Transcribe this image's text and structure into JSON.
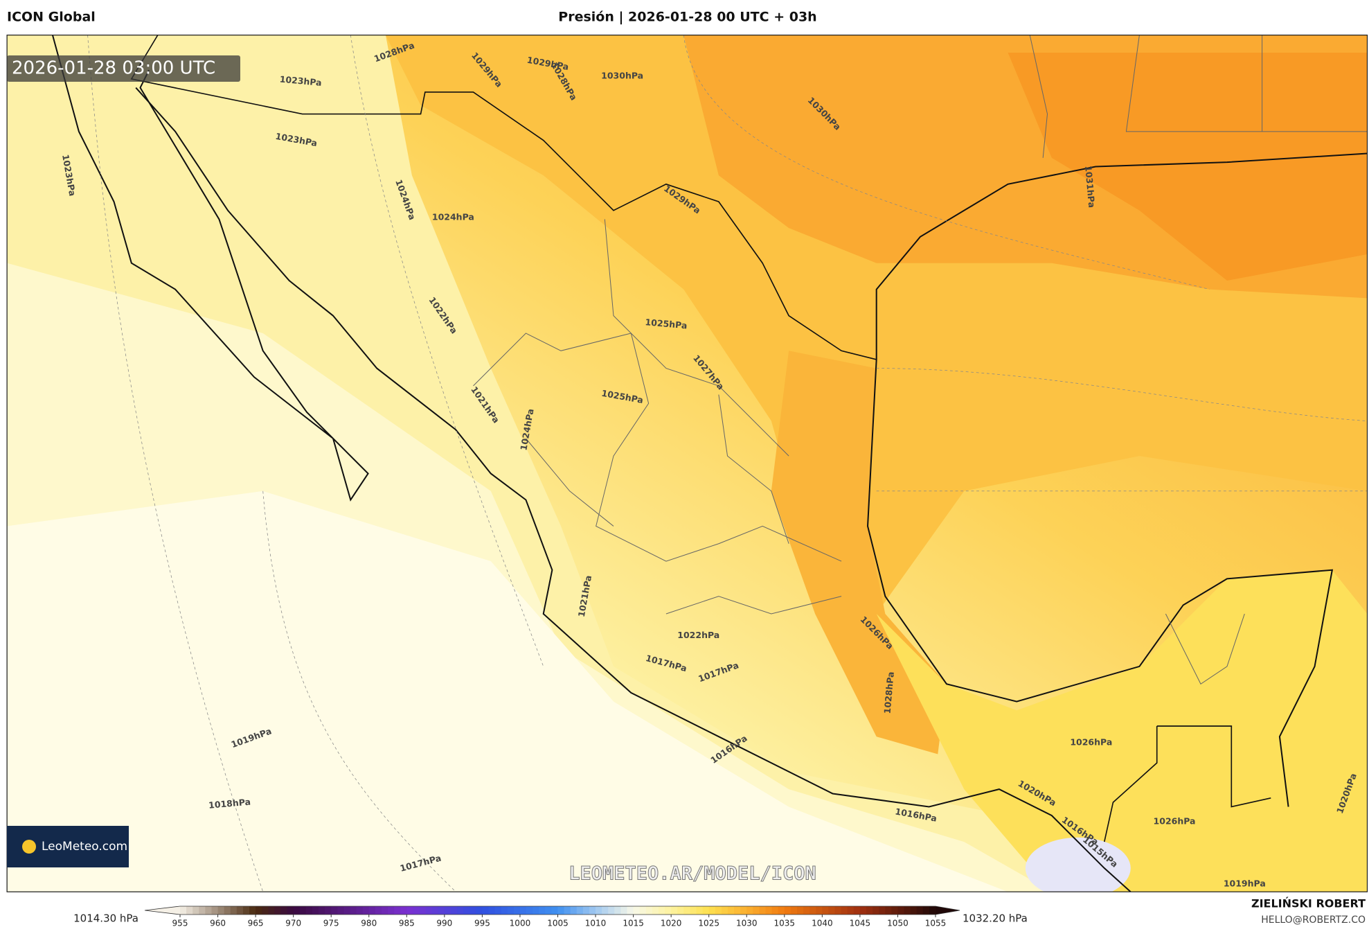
{
  "header": {
    "model": "ICON Global",
    "title": "Presión | 2026-01-28 00 UTC + 03h"
  },
  "map": {
    "timestamp": "2026-01-28 03:00 UTC",
    "contour_labels": [
      "1028hPa",
      "1023hPa",
      "1029hPa",
      "1029hPa",
      "1028hPa",
      "1030hPa",
      "1030hPa",
      "1023hPa",
      "1023hPa",
      "1024hPa",
      "1024hPa",
      "1029hPa",
      "1031hPa",
      "1022hPa",
      "1025hPa",
      "1027hPa",
      "1025hPa",
      "1021hPa",
      "1024hPa",
      "1021hPa",
      "1022hPa",
      "1026hPa",
      "1017hPa",
      "1017hPa",
      "1028hPa",
      "1019hPa",
      "1016hPa",
      "1026hPa",
      "1018hPa",
      "1020hPa",
      "1016hPa",
      "1026hPa",
      "1016hPa",
      "1015hPa",
      "1017hPa",
      "1020hPa",
      "1019hPa"
    ],
    "logo": "LeoMeteo.com",
    "watermark": "LEOMETEO.AR/MODEL/ICON"
  },
  "colorbar": {
    "min_label": "1014.30 hPa",
    "max_label": "1032.20 hPa",
    "ticks": [
      955,
      960,
      965,
      970,
      975,
      980,
      985,
      990,
      995,
      1000,
      1005,
      1010,
      1015,
      1020,
      1025,
      1030,
      1035,
      1040,
      1045,
      1050,
      1055
    ]
  },
  "credit": {
    "name": "ZIELIŃSKI ROBERT",
    "email": "HELLO@ROBERTZ.CO"
  }
}
